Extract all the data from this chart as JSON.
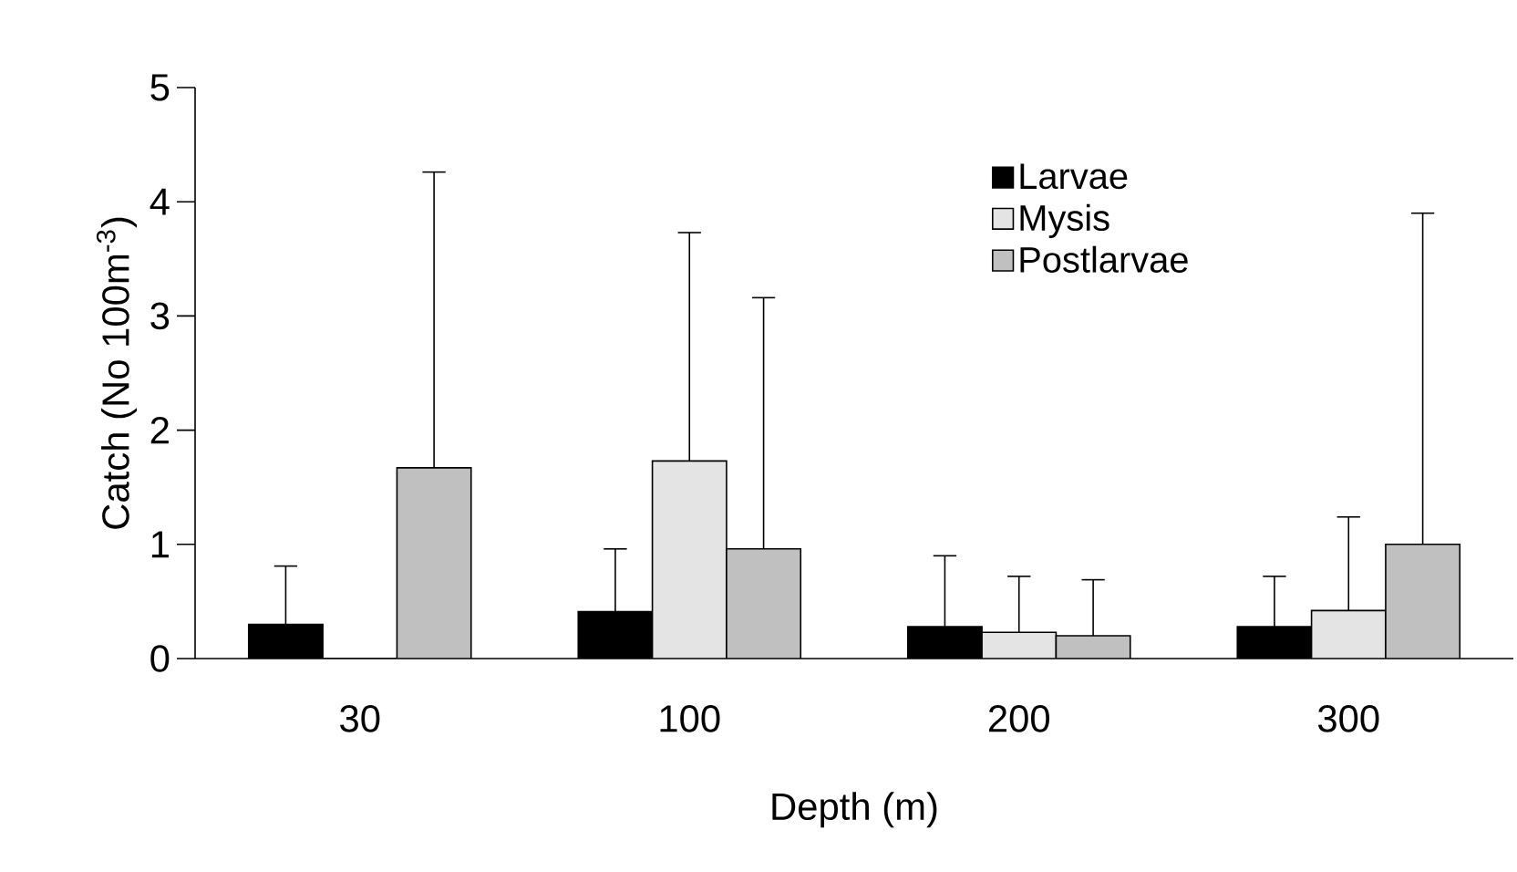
{
  "chart_data": {
    "type": "bar",
    "xlabel": "Depth (m)",
    "ylabel": "Catch (No 100m$^{-3}$)",
    "categories": [
      "30",
      "100",
      "200",
      "300"
    ],
    "series": [
      {
        "name": "Larvae",
        "color": "#000000",
        "values": [
          0.3,
          0.41,
          0.28,
          0.28
        ],
        "errors": [
          [
            0.3,
            0.81
          ],
          [
            0.41,
            0.96
          ],
          [
            0.28,
            0.9
          ],
          [
            0.28,
            0.72
          ]
        ]
      },
      {
        "name": "Mysis",
        "color": "#e4e4e4",
        "values": [
          0,
          1.73,
          0.23,
          0.42
        ],
        "errors": [
          null,
          [
            1.73,
            3.73
          ],
          [
            0.23,
            0.72
          ],
          [
            0.42,
            1.24
          ]
        ]
      },
      {
        "name": "Postlarvae",
        "color": "#c0c0c0",
        "values": [
          1.67,
          0.96,
          0.2,
          1.0
        ],
        "errors": [
          [
            1.67,
            4.26
          ],
          [
            0.96,
            3.16
          ],
          [
            0.2,
            0.69
          ],
          [
            1.0,
            3.9
          ]
        ]
      }
    ],
    "ylim": [
      0,
      5
    ],
    "yticks": [
      0,
      1,
      2,
      3,
      4,
      5
    ],
    "grid": false,
    "legend": "top right"
  }
}
